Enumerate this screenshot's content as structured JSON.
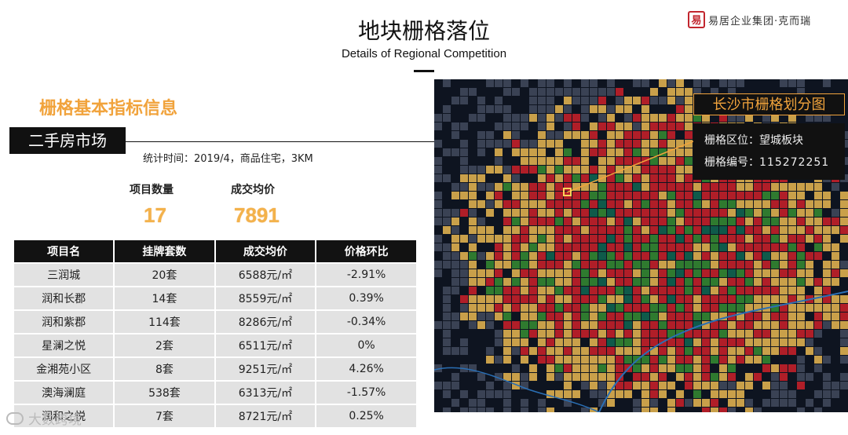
{
  "header": {
    "title": "地块栅格落位",
    "subtitle": "Details of Regional Competition",
    "logo_seal": "易",
    "logo_text": "易居企业集团·克而瑞"
  },
  "section_title": "栅格基本指标信息",
  "market_label": "二手房市场",
  "stat_time": "统计时间：2019/4，商品住宅，3KM",
  "kpis": [
    {
      "label": "项目数量",
      "value": "17"
    },
    {
      "label": "成交均价",
      "value": "7891"
    }
  ],
  "table": {
    "headers": [
      "项目名",
      "挂牌套数",
      "成交均价",
      "价格环比"
    ],
    "rows": [
      [
        "三润城",
        "20套",
        "6588元/㎡",
        "-2.91%"
      ],
      [
        "润和长郡",
        "14套",
        "8559元/㎡",
        "0.39%"
      ],
      [
        "润和紫郡",
        "114套",
        "8286元/㎡",
        "-0.34%"
      ],
      [
        "星澜之悦",
        "2套",
        "6511元/㎡",
        "0%"
      ],
      [
        "金湘苑小区",
        "8套",
        "9251元/㎡",
        "4.26%"
      ],
      [
        "澳海澜庭",
        "538套",
        "6313元/㎡",
        "-1.57%"
      ],
      [
        "润和之悦",
        "7套",
        "8721元/㎡",
        "0.25%"
      ]
    ]
  },
  "map": {
    "title": "长沙市栅格划分图",
    "info": {
      "area_label": "栅格区位：望城板块",
      "id_label": "栅格编号：",
      "id_value": "115272251"
    },
    "colors": {
      "background": "#0e1420",
      "empty_cell": "#3a4254",
      "low": "#c9a04a",
      "mid": "#b01e28",
      "high": "#2f7a2f",
      "top": "#0f5a4a",
      "grid_line": "#1a2233",
      "accent": "#f1a33c"
    }
  },
  "watermark": "大数跨境"
}
